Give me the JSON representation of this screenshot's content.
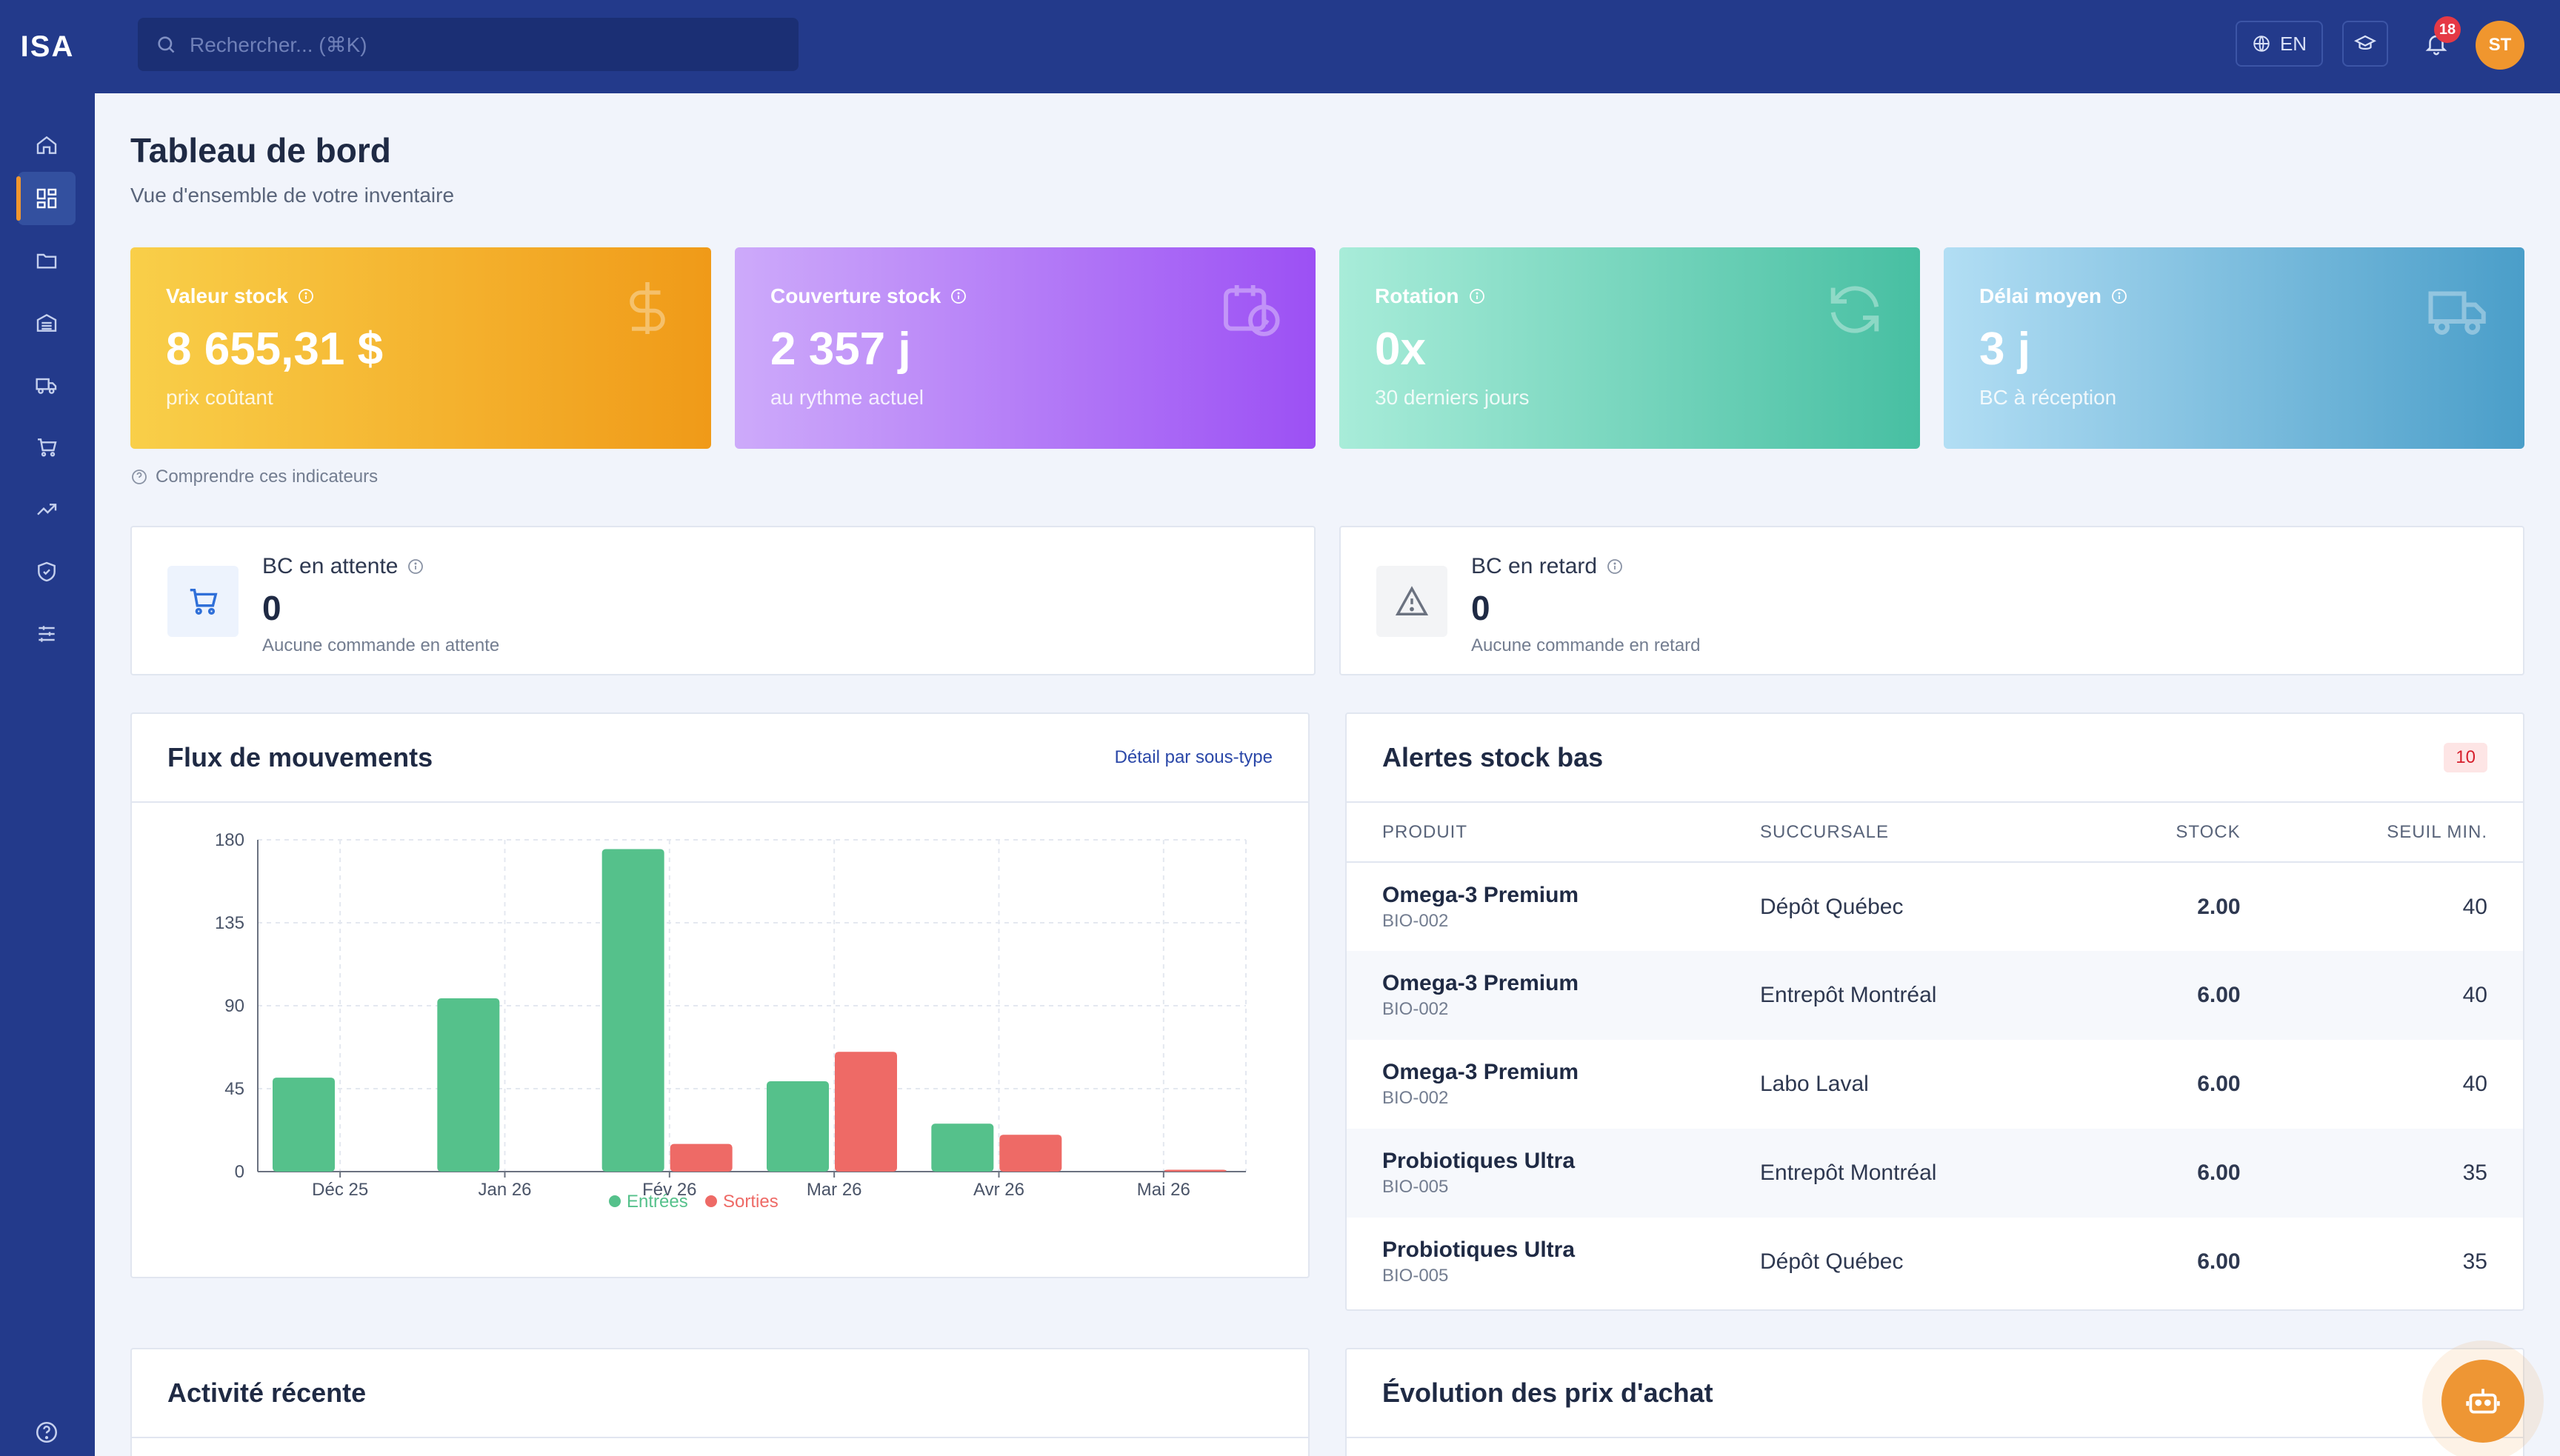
{
  "app": {
    "logo": "ISA"
  },
  "search": {
    "placeholder": "Rechercher... (⌘K)"
  },
  "topbar": {
    "lang": "EN",
    "notifications_count": "18",
    "avatar_initials": "ST"
  },
  "page": {
    "title": "Tableau de bord",
    "subtitle": "Vue d'ensemble de votre inventaire"
  },
  "kpis": [
    {
      "label": "Valeur stock",
      "value": "8 655,31 $",
      "note": "prix coûtant",
      "icon": "dollar-icon"
    },
    {
      "label": "Couverture stock",
      "value": "2 357 j",
      "note": "au rythme actuel",
      "icon": "calendar-clock-icon"
    },
    {
      "label": "Rotation",
      "value": "0x",
      "note": "30 derniers jours",
      "icon": "refresh-icon"
    },
    {
      "label": "Délai moyen",
      "value": "3 j",
      "note": "BC à réception",
      "icon": "truck-icon"
    }
  ],
  "help_link": "Comprendre ces indicateurs",
  "bc": [
    {
      "label": "BC en attente",
      "value": "0",
      "note": "Aucune commande en attente",
      "icon": "cart-icon"
    },
    {
      "label": "BC en retard",
      "value": "0",
      "note": "Aucune commande en retard",
      "icon": "warning-icon"
    }
  ],
  "flux": {
    "title": "Flux de mouvements",
    "link": "Détail par sous-type"
  },
  "chart_data": {
    "type": "bar",
    "categories": [
      "Déc 25",
      "Jan 26",
      "Fév 26",
      "Mar 26",
      "Avr 26",
      "Mai 26"
    ],
    "series": [
      {
        "name": "Entrées",
        "values": [
          51,
          94,
          175,
          49,
          26,
          0
        ],
        "color": "#55c18b"
      },
      {
        "name": "Sorties",
        "values": [
          0,
          0,
          15,
          65,
          20,
          1
        ],
        "color": "#ee6a66"
      }
    ],
    "yticks": [
      "0",
      "45",
      "90",
      "135",
      "180"
    ],
    "ylim": [
      0,
      180
    ],
    "grid": true,
    "legend": "bottom"
  },
  "alerts": {
    "title": "Alertes stock bas",
    "count": "10",
    "columns": [
      "PRODUIT",
      "SUCCURSALE",
      "STOCK",
      "SEUIL MIN."
    ],
    "rows": [
      {
        "name": "Omega-3 Premium",
        "sku": "BIO-002",
        "branch": "Dépôt Québec",
        "stock": "2.00",
        "min": "40"
      },
      {
        "name": "Omega-3 Premium",
        "sku": "BIO-002",
        "branch": "Entrepôt Montréal",
        "stock": "6.00",
        "min": "40"
      },
      {
        "name": "Omega-3 Premium",
        "sku": "BIO-002",
        "branch": "Labo Laval",
        "stock": "6.00",
        "min": "40"
      },
      {
        "name": "Probiotiques Ultra",
        "sku": "BIO-005",
        "branch": "Entrepôt Montréal",
        "stock": "6.00",
        "min": "35"
      },
      {
        "name": "Probiotiques Ultra",
        "sku": "BIO-005",
        "branch": "Dépôt Québec",
        "stock": "6.00",
        "min": "35"
      }
    ]
  },
  "activity": {
    "title": "Activité récente"
  },
  "prices": {
    "title": "Évolution des prix d'achat"
  }
}
